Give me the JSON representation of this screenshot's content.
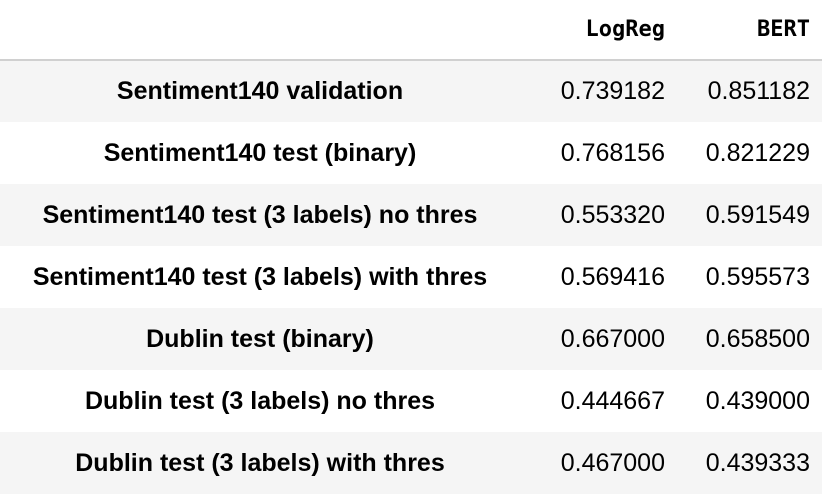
{
  "table": {
    "columns": [
      "",
      "LogReg",
      "BERT"
    ],
    "rows": [
      {
        "label": "Sentiment140 validation",
        "logreg": "0.739182",
        "bert": "0.851182"
      },
      {
        "label": "Sentiment140 test (binary)",
        "logreg": "0.768156",
        "bert": "0.821229"
      },
      {
        "label": "Sentiment140 test (3 labels) no thres",
        "logreg": "0.553320",
        "bert": "0.591549"
      },
      {
        "label": "Sentiment140 test (3 labels) with thres",
        "logreg": "0.569416",
        "bert": "0.595573"
      },
      {
        "label": "Dublin test (binary)",
        "logreg": "0.667000",
        "bert": "0.658500"
      },
      {
        "label": "Dublin test (3 labels) no thres",
        "logreg": "0.444667",
        "bert": "0.439000"
      },
      {
        "label": "Dublin test (3 labels) with thres",
        "logreg": "0.467000",
        "bert": "0.439333"
      }
    ]
  }
}
